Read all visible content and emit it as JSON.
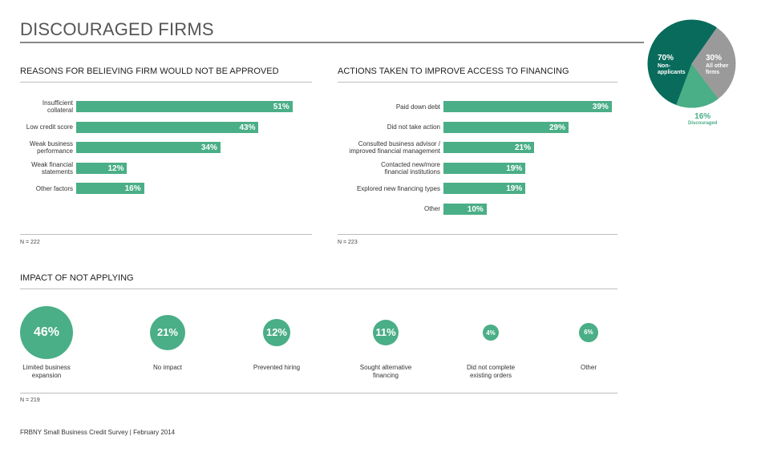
{
  "page": {
    "title": "DISCOURAGED FIRMS",
    "footer": "FRBNY Small Business Credit Survey  |  February 2014"
  },
  "colors": {
    "bar": "#4aae87",
    "pie_dark": "#096b5c",
    "pie_light": "#4aae87",
    "pie_gray": "#9a9a9a",
    "rule": "#bdbdbd"
  },
  "pie": {
    "slices": [
      {
        "pct": "70%",
        "label_line1": "Non-",
        "label_line2": "applicants",
        "value": 70
      },
      {
        "pct": "30%",
        "label_line1": "All other",
        "label_line2": "firms",
        "value": 30
      },
      {
        "pct": "16%",
        "label": "Discouraged",
        "value": 16
      }
    ]
  },
  "chart_data": [
    {
      "type": "bar",
      "title": "REASONS FOR BELIEVING FIRM WOULD NOT BE APPROVED",
      "note": "N = 222",
      "categories": [
        [
          "Insufficient",
          "collateral"
        ],
        [
          "Low credit score"
        ],
        [
          "Weak business",
          "performance"
        ],
        [
          "Weak financial",
          "statements"
        ],
        [
          "Other factors"
        ]
      ],
      "values": [
        51,
        43,
        34,
        12,
        16
      ],
      "labels": [
        "51%",
        "43%",
        "34%",
        "12%",
        "16%"
      ]
    },
    {
      "type": "bar",
      "title": "ACTIONS TAKEN TO IMPROVE ACCESS TO FINANCING",
      "note": "N = 223",
      "categories": [
        [
          "Paid down debt"
        ],
        [
          "Did not take action"
        ],
        [
          "Consulted business advisor /",
          "improved financial management"
        ],
        [
          "Contacted new/more",
          "financial institutions"
        ],
        [
          "Explored new financing types"
        ],
        [
          "Other"
        ]
      ],
      "values": [
        39,
        29,
        21,
        19,
        19,
        10
      ],
      "labels": [
        "39%",
        "29%",
        "21%",
        "19%",
        "19%",
        "10%"
      ]
    },
    {
      "type": "bubble",
      "title": "IMPACT OF NOT APPLYING",
      "note": "N = 219",
      "categories": [
        [
          "Limited business",
          "expansion"
        ],
        [
          "No impact"
        ],
        [
          "Prevented hiring"
        ],
        [
          "Sought alternative",
          "financing"
        ],
        [
          "Did not complete",
          "existing orders"
        ],
        [
          "Other"
        ]
      ],
      "values": [
        46,
        21,
        12,
        11,
        4,
        6
      ],
      "labels": [
        "46%",
        "21%",
        "12%",
        "11%",
        "4%",
        "6%"
      ]
    }
  ]
}
